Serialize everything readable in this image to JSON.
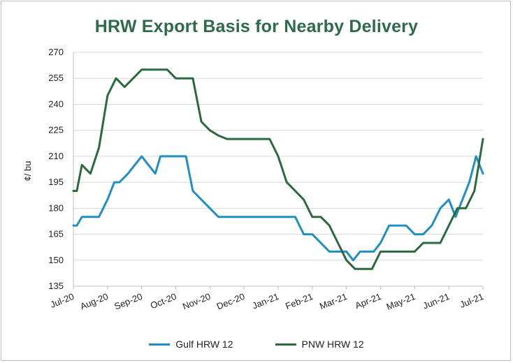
{
  "chart_data": {
    "type": "line",
    "title": "HRW Export Basis for Nearby Delivery",
    "ylabel": "¢/ bu",
    "xlabel": "",
    "ylim": [
      135,
      270
    ],
    "yticks": [
      135,
      150,
      165,
      180,
      195,
      210,
      225,
      240,
      255,
      270
    ],
    "xticks": [
      "Jul-20",
      "Aug-20",
      "Sep-20",
      "Oct-20",
      "Nov-20",
      "Dec-20",
      "Jan-21",
      "Feb-21",
      "Mar-21",
      "Apr-21",
      "May-21",
      "Jun-21",
      "Jul-21"
    ],
    "grid": "horizontal",
    "legend": "bottom",
    "series": [
      {
        "name": "Gulf HRW 12",
        "color": "#1f8fc4",
        "x": [
          0,
          0.1,
          0.25,
          0.5,
          0.75,
          1.0,
          1.2,
          1.35,
          1.6,
          1.8,
          2.0,
          2.2,
          2.4,
          2.55,
          2.8,
          3.0,
          3.2,
          3.3,
          3.5,
          3.75,
          4.0,
          4.25,
          4.5,
          4.75,
          5.0,
          5.25,
          5.5,
          5.75,
          6.0,
          6.25,
          6.5,
          6.75,
          7.0,
          7.25,
          7.5,
          7.75,
          8.0,
          8.2,
          8.4,
          8.6,
          8.8,
          9.0,
          9.25,
          9.5,
          9.75,
          10.0,
          10.25,
          10.5,
          10.75,
          11.0,
          11.2,
          11.4,
          11.6,
          11.8,
          12.0
        ],
        "y": [
          170,
          170,
          175,
          175,
          175,
          185,
          195,
          195,
          200,
          205,
          210,
          205,
          200,
          210,
          210,
          210,
          210,
          210,
          190,
          185,
          180,
          175,
          175,
          175,
          175,
          175,
          175,
          175,
          175,
          175,
          175,
          165,
          165,
          160,
          155,
          155,
          155,
          150,
          155,
          155,
          155,
          160,
          170,
          170,
          170,
          165,
          165,
          170,
          180,
          185,
          175,
          185,
          195,
          210,
          200
        ]
      },
      {
        "name": "PNW HRW 12",
        "color": "#2b6a3c",
        "x": [
          0,
          0.1,
          0.25,
          0.5,
          0.75,
          1.0,
          1.25,
          1.5,
          1.75,
          2.0,
          2.25,
          2.5,
          2.75,
          3.0,
          3.25,
          3.5,
          3.75,
          4.0,
          4.25,
          4.5,
          4.75,
          5.0,
          5.25,
          5.5,
          5.75,
          6.0,
          6.25,
          6.5,
          6.75,
          7.0,
          7.25,
          7.5,
          7.75,
          8.0,
          8.25,
          8.5,
          8.75,
          9.0,
          9.25,
          9.5,
          9.75,
          10.0,
          10.25,
          10.5,
          10.75,
          11.0,
          11.25,
          11.5,
          11.75,
          12.0
        ],
        "y": [
          190,
          190,
          205,
          200,
          215,
          245,
          255,
          250,
          255,
          260,
          260,
          260,
          260,
          255,
          255,
          255,
          230,
          225,
          222,
          220,
          220,
          220,
          220,
          220,
          220,
          210,
          195,
          190,
          185,
          175,
          175,
          170,
          160,
          150,
          145,
          145,
          145,
          155,
          155,
          155,
          155,
          155,
          160,
          160,
          160,
          170,
          180,
          180,
          190,
          220
        ]
      }
    ]
  }
}
